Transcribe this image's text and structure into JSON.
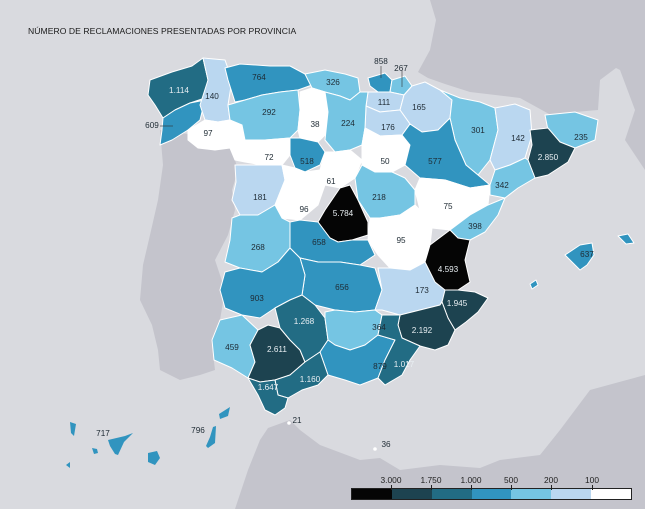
{
  "title": "NÚMERO DE RECLAMACIONES PRESENTADAS POR PROVINCIA",
  "colors": {
    "sea": "#d9dadf",
    "foreign_land": "#c4c4cc",
    "c_3000_plus": "#050505",
    "c_1750_3000": "#1d4350",
    "c_1000_1750": "#226c84",
    "c_500_1000": "#3194bf",
    "c_200_500": "#75c5e3",
    "c_100_200": "#bad7f0",
    "c_0_100": "#ffffff"
  },
  "legend": {
    "ticks": [
      "3.000",
      "1.750",
      "1.000",
      "500",
      "200",
      "100"
    ],
    "segments": [
      "#050505",
      "#1d4350",
      "#226c84",
      "#3194bf",
      "#75c5e3",
      "#bad7f0",
      "#ffffff"
    ]
  },
  "provinces": [
    {
      "name": "A Coruña",
      "value": "1.114"
    },
    {
      "name": "Lugo",
      "value": "140"
    },
    {
      "name": "Asturias",
      "value": "764"
    },
    {
      "name": "Cantabria",
      "value": "326"
    },
    {
      "name": "Bizkaia",
      "value": "858"
    },
    {
      "name": "Gipuzkoa",
      "value": "267"
    },
    {
      "name": "Pontevedra",
      "value": "609"
    },
    {
      "name": "Ourense",
      "value": "97"
    },
    {
      "name": "León",
      "value": "292"
    },
    {
      "name": "Palencia",
      "value": "38"
    },
    {
      "name": "Burgos",
      "value": "224"
    },
    {
      "name": "Álava",
      "value": "111"
    },
    {
      "name": "Navarra",
      "value": "165"
    },
    {
      "name": "La Rioja",
      "value": "176"
    },
    {
      "name": "Huesca",
      "value": "301"
    },
    {
      "name": "Lleida",
      "value": "142"
    },
    {
      "name": "Girona",
      "value": "235"
    },
    {
      "name": "Barcelona",
      "value": "2.850"
    },
    {
      "name": "Tarragona",
      "value": "342"
    },
    {
      "name": "Zamora",
      "value": "72"
    },
    {
      "name": "Valladolid",
      "value": "518"
    },
    {
      "name": "Soria",
      "value": "50"
    },
    {
      "name": "Zaragoza",
      "value": "577"
    },
    {
      "name": "Segovia",
      "value": "61"
    },
    {
      "name": "Salamanca",
      "value": "181"
    },
    {
      "name": "Ávila",
      "value": "96"
    },
    {
      "name": "Madrid",
      "value": "5.784"
    },
    {
      "name": "Guadalajara",
      "value": "218"
    },
    {
      "name": "Teruel",
      "value": "75"
    },
    {
      "name": "Castellón",
      "value": "398"
    },
    {
      "name": "Cáceres",
      "value": "268"
    },
    {
      "name": "Toledo",
      "value": "658"
    },
    {
      "name": "Cuenca",
      "value": "95"
    },
    {
      "name": "Valencia",
      "value": "4.593"
    },
    {
      "name": "Badajoz",
      "value": "903"
    },
    {
      "name": "Ciudad Real",
      "value": "656"
    },
    {
      "name": "Albacete",
      "value": "173"
    },
    {
      "name": "Alicante",
      "value": "1.945"
    },
    {
      "name": "Murcia",
      "value": "2.192"
    },
    {
      "name": "Córdoba",
      "value": "1.268"
    },
    {
      "name": "Jaén",
      "value": "364"
    },
    {
      "name": "Huelva",
      "value": "459"
    },
    {
      "name": "Sevilla",
      "value": "2.611"
    },
    {
      "name": "Granada",
      "value": "879"
    },
    {
      "name": "Almería",
      "value": "1.017"
    },
    {
      "name": "Cádiz",
      "value": "1.647"
    },
    {
      "name": "Málaga",
      "value": "1.160"
    },
    {
      "name": "Illes Balears",
      "value": "637"
    },
    {
      "name": "Santa Cruz de Tenerife",
      "value": "717"
    },
    {
      "name": "Las Palmas",
      "value": "796"
    },
    {
      "name": "Ceuta",
      "value": "21"
    },
    {
      "name": "Melilla",
      "value": "36"
    }
  ]
}
